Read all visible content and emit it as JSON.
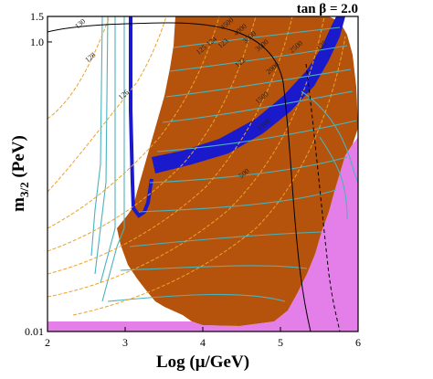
{
  "chart_data": {
    "type": "contour",
    "title": "tan β = 2.0",
    "xlabel": "Log (μ/GeV)",
    "ylabel": "m3/2 (PeV)",
    "ylabel_main": "m",
    "ylabel_sub": "3/2",
    "ylabel_unit": " (PeV)",
    "xlim": [
      2,
      6
    ],
    "x_ticks": [
      {
        "value": 2,
        "label": "2"
      },
      {
        "value": 3,
        "label": "3"
      },
      {
        "value": 4,
        "label": "4"
      },
      {
        "value": 5,
        "label": "5"
      },
      {
        "value": 6,
        "label": "6"
      }
    ],
    "y_scale": "log",
    "y_ticks": [
      {
        "value": 0.01,
        "label": "0.01"
      },
      {
        "value": 1.0,
        "label": "1.0"
      },
      {
        "value": 1.5,
        "label": "1.5"
      }
    ],
    "colors": {
      "allowed_region": "#b5530d",
      "excluded_region": "#e47ee8",
      "dark_matter_band": "#1a1acc",
      "mass_contours": "#4ab3be",
      "higgs_contours": "#e8a22a",
      "boundary_line": "#000000"
    },
    "contour_labels": [
      {
        "text": "4500",
        "x": 4.33,
        "y": 1.3
      },
      {
        "text": "4000",
        "x": 4.5,
        "y": 1.18
      },
      {
        "text": "3500",
        "x": 4.62,
        "y": 1.05
      },
      {
        "text": "3000",
        "x": 4.78,
        "y": 0.92
      },
      {
        "text": "2500",
        "x": 5.22,
        "y": 0.9
      },
      {
        "text": "2000",
        "x": 4.92,
        "y": 0.64
      },
      {
        "text": "1500",
        "x": 4.78,
        "y": 0.4
      },
      {
        "text": "1000",
        "x": 4.8,
        "y": 0.26
      },
      {
        "text": "500",
        "x": 4.55,
        "y": 0.12
      },
      {
        "text": "130",
        "x": 2.44,
        "y": 1.3
      },
      {
        "text": "128",
        "x": 2.57,
        "y": 0.76
      },
      {
        "text": "126",
        "x": 3.0,
        "y": 0.42
      },
      {
        "text": "125",
        "x": 4.0,
        "y": 0.86
      },
      {
        "text": "124",
        "x": 4.13,
        "y": 0.98
      },
      {
        "text": "123",
        "x": 4.28,
        "y": 0.95
      },
      {
        "text": "122",
        "x": 4.5,
        "y": 0.7
      },
      {
        "text": "125",
        "x": 5.55,
        "y": 0.92
      }
    ]
  }
}
